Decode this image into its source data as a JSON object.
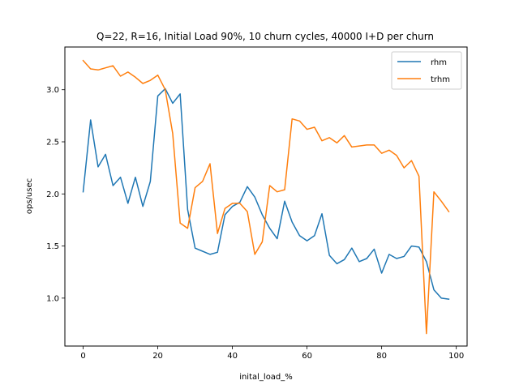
{
  "chart_data": {
    "type": "line",
    "title": "Q=22, R=16, Initial Load 90%, 10 churn cycles, 40000 I+D per churn",
    "xlabel": "inital_load_%",
    "ylabel": "ops/usec",
    "xlim": [
      -4.9,
      102.9
    ],
    "ylim": [
      0.54,
      3.41
    ],
    "xticks": [
      0,
      20,
      40,
      60,
      80,
      100
    ],
    "yticks": [
      1.0,
      1.5,
      2.0,
      2.5,
      3.0
    ],
    "xtick_labels": [
      "0",
      "20",
      "40",
      "60",
      "80",
      "100"
    ],
    "ytick_labels": [
      "1.0",
      "1.5",
      "2.0",
      "2.5",
      "3.0"
    ],
    "grid": false,
    "legend_position": "top-right",
    "x": [
      0,
      2,
      4,
      6,
      8,
      10,
      12,
      14,
      16,
      18,
      20,
      22,
      24,
      26,
      28,
      30,
      32,
      34,
      36,
      38,
      40,
      42,
      44,
      46,
      48,
      50,
      52,
      54,
      56,
      58,
      60,
      62,
      64,
      66,
      68,
      70,
      72,
      74,
      76,
      78,
      80,
      82,
      84,
      86,
      88,
      90,
      92,
      94,
      96,
      98
    ],
    "series": [
      {
        "name": "rhm",
        "color": "#1f77b4",
        "values": [
          2.02,
          2.71,
          2.26,
          2.38,
          2.08,
          2.16,
          1.91,
          2.16,
          1.88,
          2.12,
          2.94,
          3.01,
          2.87,
          2.96,
          1.85,
          1.48,
          1.45,
          1.42,
          1.44,
          1.8,
          1.88,
          1.92,
          2.07,
          1.97,
          1.8,
          1.67,
          1.57,
          1.93,
          1.73,
          1.6,
          1.55,
          1.6,
          1.81,
          1.41,
          1.33,
          1.37,
          1.48,
          1.35,
          1.38,
          1.47,
          1.24,
          1.42,
          1.38,
          1.4,
          1.5,
          1.49,
          1.35,
          1.08,
          1.0,
          0.99
        ]
      },
      {
        "name": "trhm",
        "color": "#ff7f0e",
        "values": [
          3.28,
          3.2,
          3.19,
          3.21,
          3.23,
          3.13,
          3.17,
          3.12,
          3.06,
          3.09,
          3.14,
          3.0,
          2.58,
          1.72,
          1.67,
          2.06,
          2.12,
          2.29,
          1.62,
          1.86,
          1.91,
          1.91,
          1.83,
          1.42,
          1.54,
          2.08,
          2.02,
          2.04,
          2.72,
          2.7,
          2.62,
          2.64,
          2.51,
          2.54,
          2.49,
          2.56,
          2.45,
          2.46,
          2.47,
          2.47,
          2.39,
          2.42,
          2.37,
          2.25,
          2.32,
          2.17,
          0.66,
          2.02,
          1.93,
          1.83
        ]
      }
    ]
  }
}
